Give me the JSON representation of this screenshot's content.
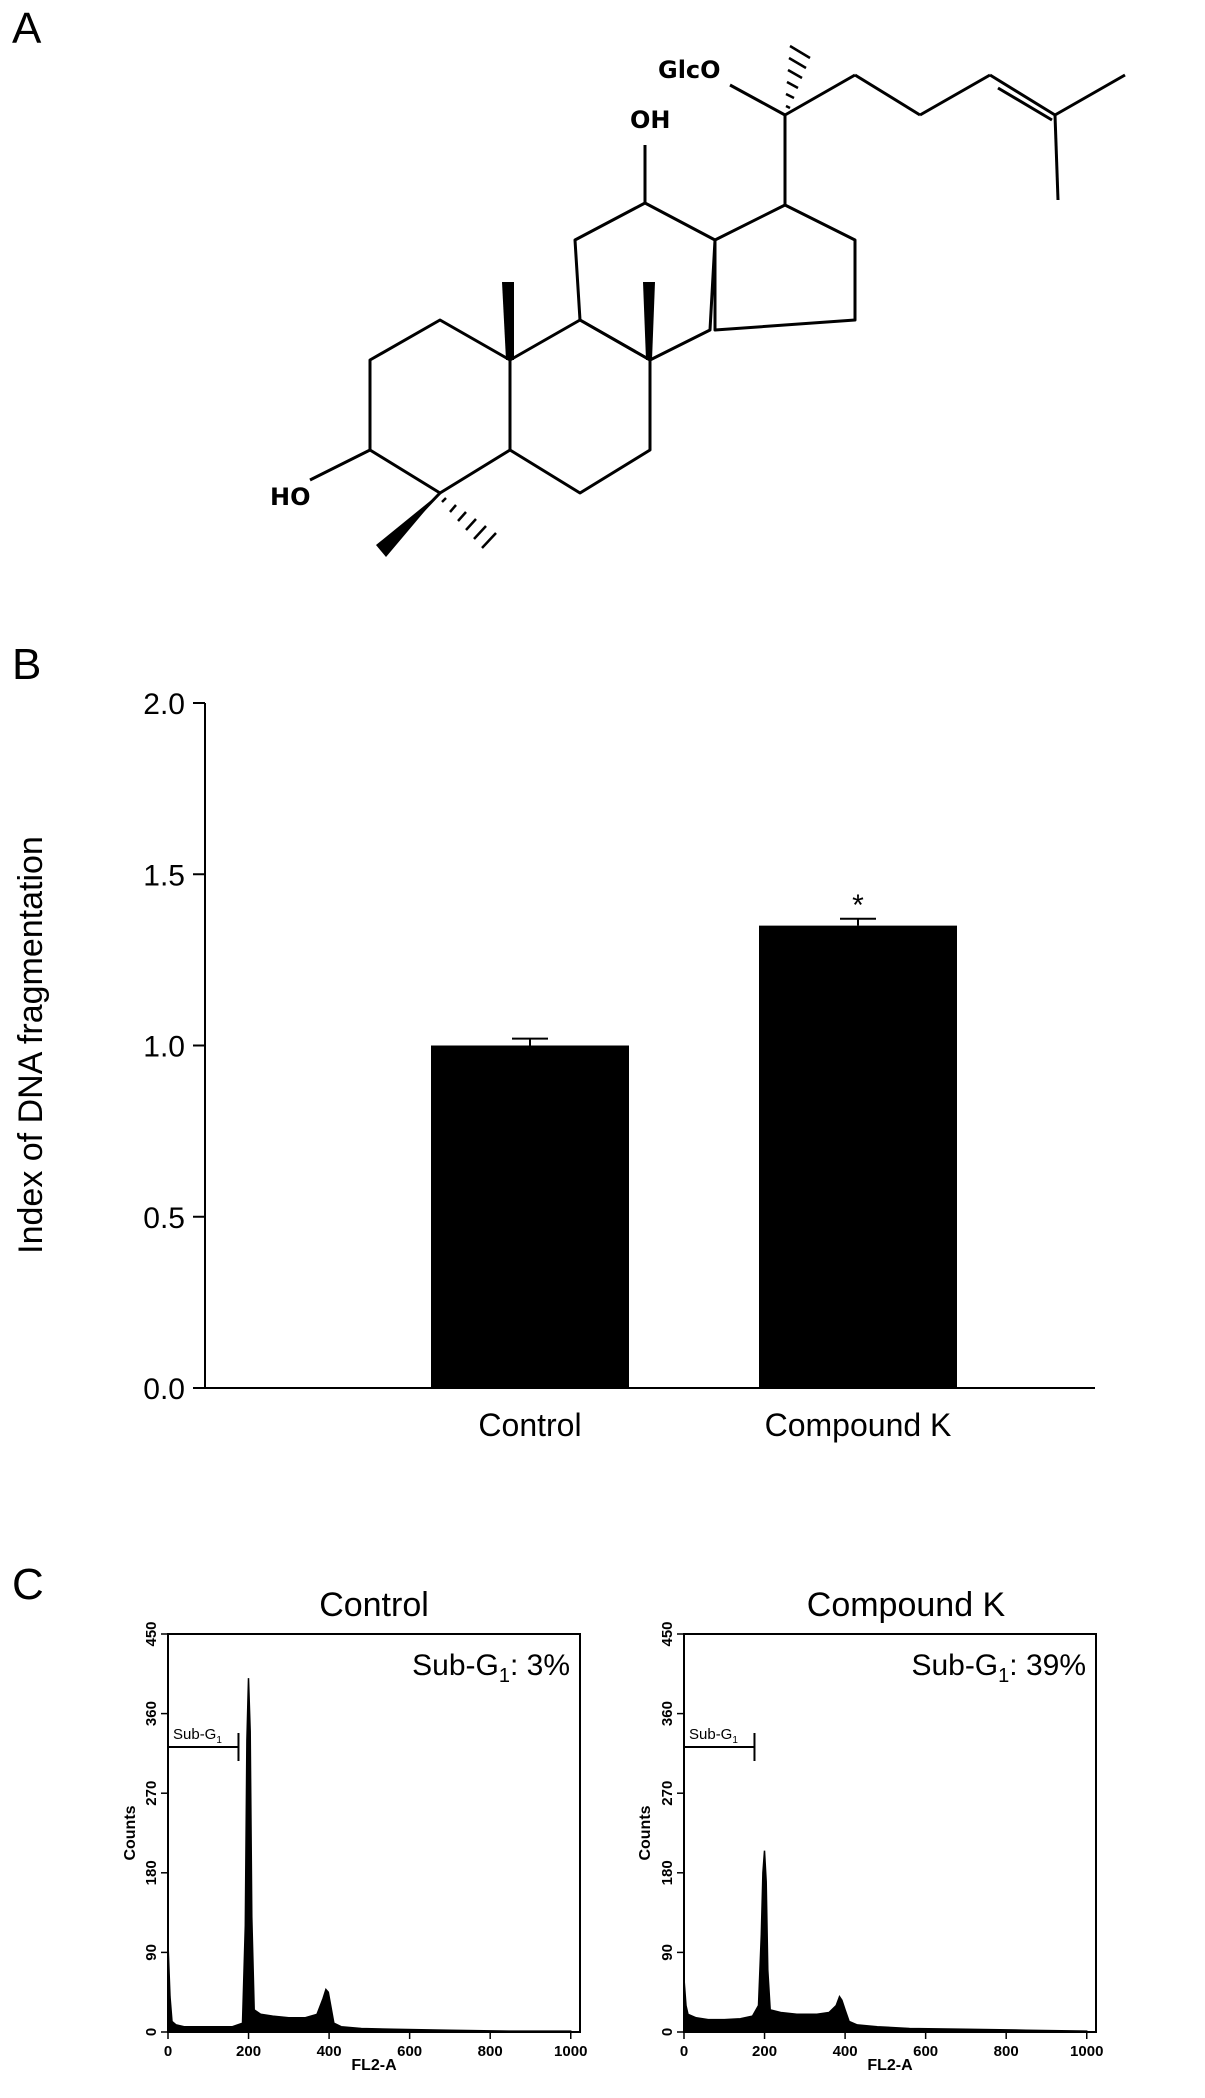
{
  "panels": {
    "a": {
      "letter": "A"
    },
    "b": {
      "letter": "B"
    },
    "c": {
      "letter": "C"
    }
  },
  "structure": {
    "labels": {
      "glco": "GlcO",
      "oh_top": "OH",
      "ho_left": "HO"
    }
  },
  "chart_data": [
    {
      "type": "bar",
      "categories": [
        "Control",
        "Compound K"
      ],
      "values": [
        1.0,
        1.35
      ],
      "errors": [
        0.02,
        0.02
      ],
      "significance": [
        "",
        "*"
      ],
      "ylabel": "Index of DNA fragmentation",
      "xlabel": "",
      "ylim": [
        0,
        2.0
      ],
      "yticks": [
        "0.0",
        "0.5",
        "1.0",
        "1.5",
        "2.0"
      ],
      "bar_color": "#000000",
      "grid": false
    },
    {
      "type": "area",
      "title": "Control",
      "annotation_main": "Sub-G",
      "annotation_sub": "1",
      "annotation_value": ": 3%",
      "gate_main": "Sub-G",
      "gate_sub": "1",
      "gate_range": [
        0,
        175
      ],
      "xlabel": "FL2-A",
      "ylabel": "Counts",
      "xlim": [
        0,
        1023
      ],
      "ylim": [
        0,
        450
      ],
      "xticks": [
        "0",
        "200",
        "400",
        "600",
        "800",
        "1000"
      ],
      "yticks": [
        "0",
        "90",
        "180",
        "270",
        "360",
        "450"
      ],
      "x": [
        0,
        5,
        10,
        20,
        40,
        80,
        120,
        160,
        185,
        192,
        196,
        200,
        204,
        208,
        214,
        230,
        260,
        300,
        340,
        370,
        385,
        392,
        398,
        404,
        412,
        430,
        480,
        560,
        700,
        850,
        1000
      ],
      "y": [
        100,
        40,
        12,
        8,
        6,
        6,
        6,
        6,
        10,
        120,
        330,
        400,
        340,
        130,
        25,
        20,
        18,
        16,
        16,
        20,
        38,
        48,
        45,
        30,
        10,
        6,
        4,
        3,
        2,
        1,
        1
      ]
    },
    {
      "type": "area",
      "title": "Compound K",
      "annotation_main": "Sub-G",
      "annotation_sub": "1",
      "annotation_value": ": 39%",
      "gate_main": "Sub-G",
      "gate_sub": "1",
      "gate_range": [
        0,
        175
      ],
      "xlabel": "FL2-A",
      "ylabel": "Counts",
      "xlim": [
        0,
        1023
      ],
      "ylim": [
        0,
        450
      ],
      "xticks": [
        "0",
        "200",
        "400",
        "600",
        "800",
        "1000"
      ],
      "yticks": [
        "0",
        "90",
        "180",
        "270",
        "360",
        "450"
      ],
      "x": [
        0,
        5,
        10,
        30,
        60,
        100,
        140,
        170,
        185,
        192,
        196,
        200,
        204,
        208,
        214,
        240,
        280,
        330,
        360,
        378,
        386,
        392,
        400,
        410,
        430,
        480,
        560,
        700,
        850,
        1000
      ],
      "y": [
        60,
        30,
        20,
        16,
        14,
        14,
        15,
        18,
        30,
        110,
        180,
        205,
        170,
        70,
        25,
        22,
        20,
        20,
        22,
        30,
        40,
        36,
        25,
        12,
        8,
        6,
        4,
        3,
        2,
        1
      ]
    }
  ]
}
